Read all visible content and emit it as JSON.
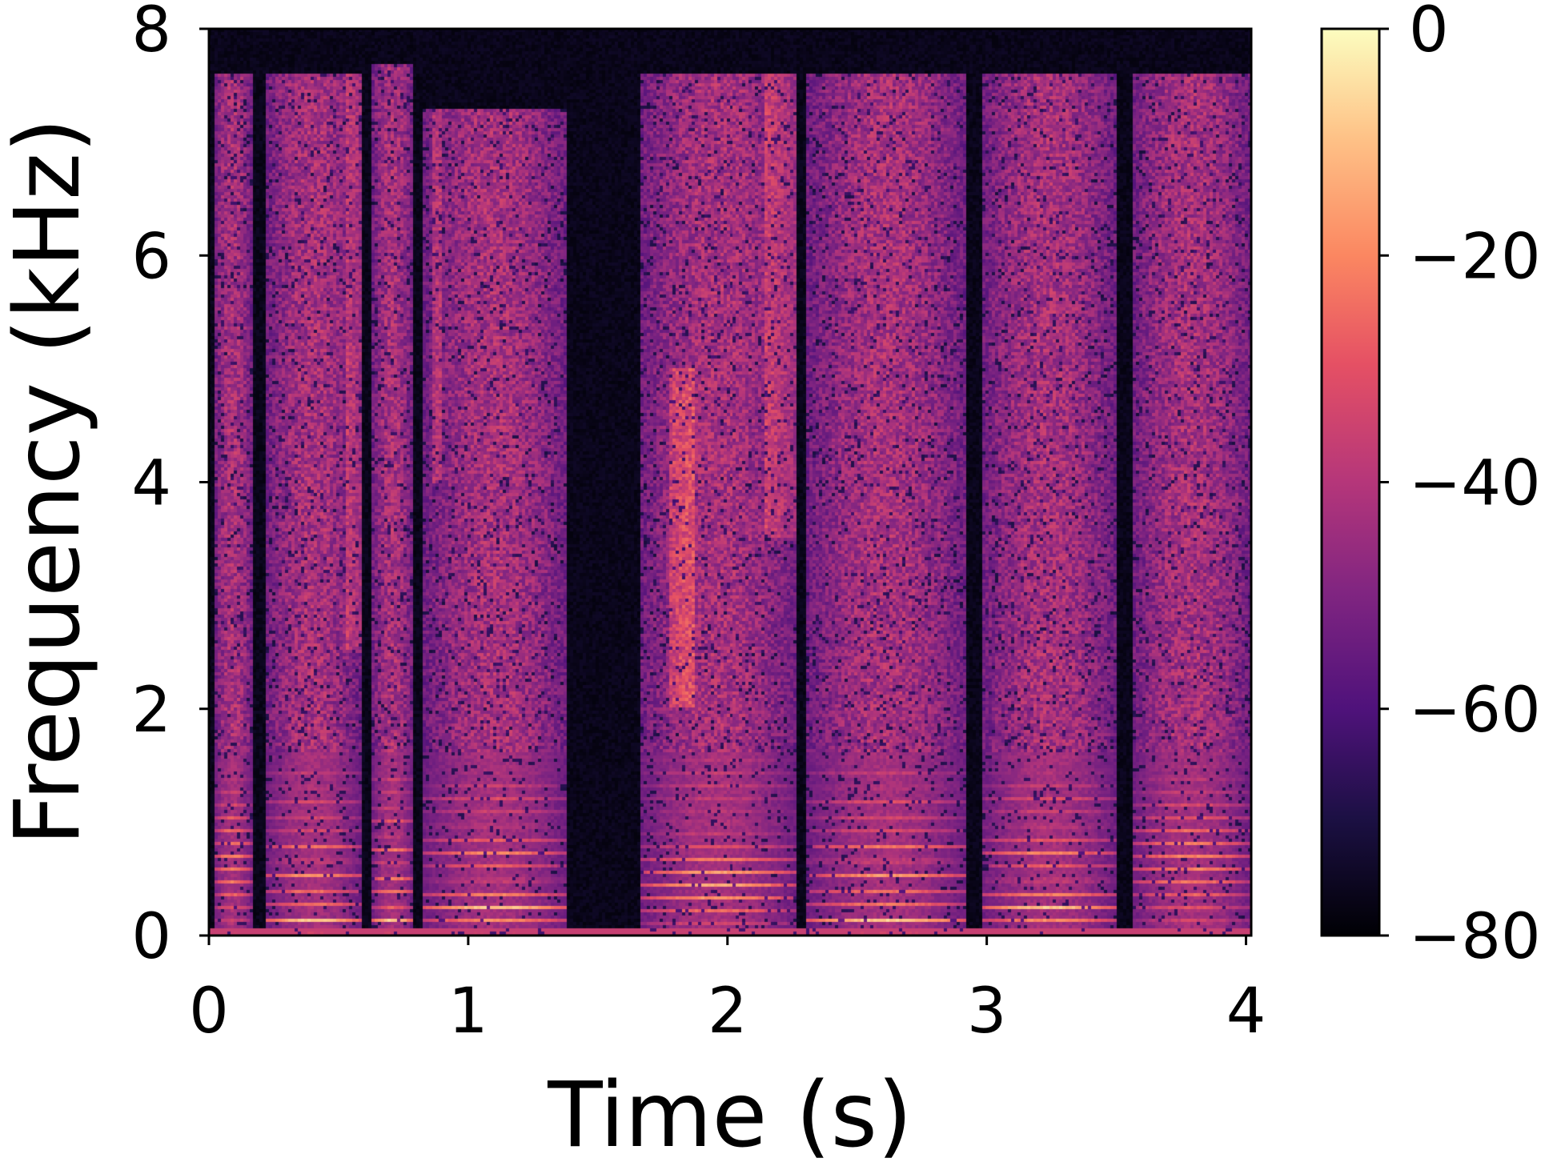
{
  "chart_data": {
    "type": "heatmap",
    "subtype": "spectrogram",
    "colormap": "magma",
    "xlabel": "Time (s)",
    "ylabel": "Frequency (kHz)",
    "xlim": [
      0,
      4.02
    ],
    "ylim": [
      0,
      8
    ],
    "x_ticks": [
      0,
      1,
      2,
      3,
      4
    ],
    "x_tick_labels": [
      "0",
      "1",
      "2",
      "3",
      "4"
    ],
    "y_ticks": [
      0,
      2,
      4,
      6,
      8
    ],
    "y_tick_labels": [
      "0",
      "2",
      "4",
      "6",
      "8"
    ],
    "colorbar": {
      "range": [
        -80,
        0
      ],
      "ticks": [
        0,
        -20,
        -40,
        -60,
        -80
      ],
      "tick_labels": [
        "0",
        "−20",
        "−40",
        "−60",
        "−80"
      ]
    },
    "grid": false,
    "silence_intervals_s": [
      [
        0.17,
        0.22
      ],
      [
        0.59,
        0.63
      ],
      [
        0.79,
        0.83
      ],
      [
        1.38,
        1.66
      ],
      [
        2.27,
        2.31
      ],
      [
        2.92,
        2.98
      ],
      [
        3.5,
        3.56
      ]
    ],
    "voiced_segments": [
      {
        "start_s": 0.02,
        "end_s": 0.17,
        "f0_hz": 115,
        "top_khz": 7.6
      },
      {
        "start_s": 0.22,
        "end_s": 0.59,
        "f0_hz": 130,
        "top_khz": 7.6
      },
      {
        "start_s": 0.63,
        "end_s": 0.79,
        "f0_hz": 125,
        "top_khz": 7.7
      },
      {
        "start_s": 0.83,
        "end_s": 1.38,
        "f0_hz": 120,
        "top_khz": 7.3
      },
      {
        "start_s": 1.66,
        "end_s": 2.27,
        "f0_hz": 110,
        "top_khz": 7.6
      },
      {
        "start_s": 2.31,
        "end_s": 2.92,
        "f0_hz": 130,
        "top_khz": 7.6
      },
      {
        "start_s": 2.98,
        "end_s": 3.5,
        "f0_hz": 120,
        "top_khz": 7.6
      },
      {
        "start_s": 3.56,
        "end_s": 4.02,
        "f0_hz": 115,
        "top_khz": 7.6
      }
    ],
    "bright_bands_khz": [
      {
        "start_s": 0.53,
        "end_s": 0.59,
        "lo_khz": 2.5,
        "hi_khz": 7.6
      },
      {
        "start_s": 0.86,
        "end_s": 0.9,
        "lo_khz": 4.0,
        "hi_khz": 7.6
      },
      {
        "start_s": 2.15,
        "end_s": 2.27,
        "lo_khz": 3.5,
        "hi_khz": 7.6
      },
      {
        "start_s": 1.78,
        "end_s": 1.88,
        "lo_khz": 2.0,
        "hi_khz": 5.0
      }
    ]
  }
}
